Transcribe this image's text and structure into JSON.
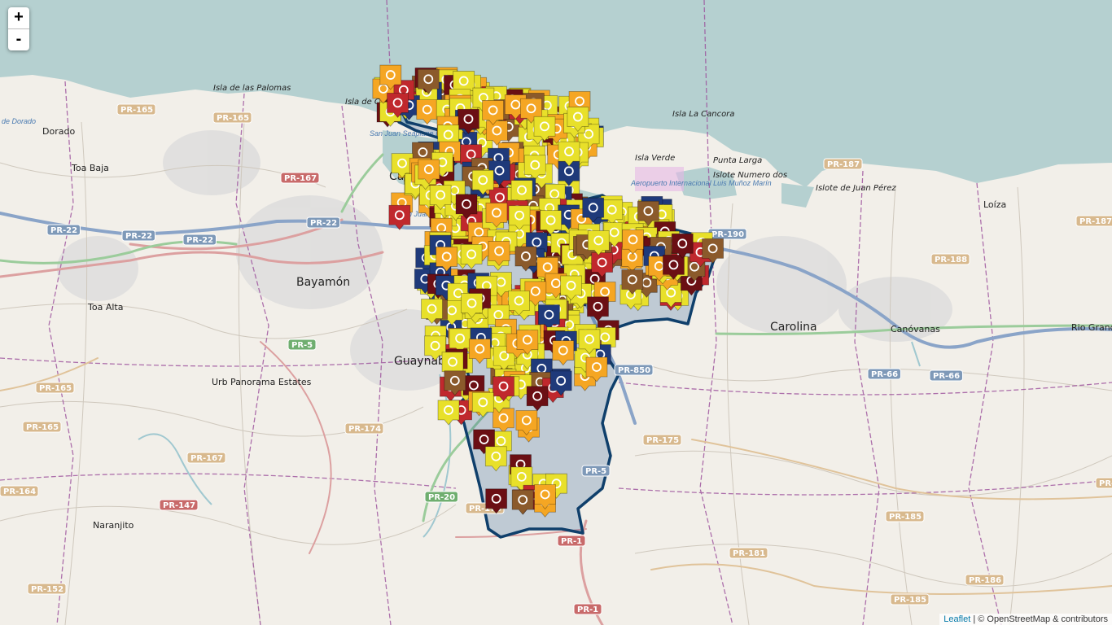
{
  "map": {
    "zoom_in_label": "+",
    "zoom_out_label": "-",
    "attribution": {
      "leaflet": "Leaflet",
      "rest": " | © OpenStreetMap & contributors"
    }
  },
  "places": {
    "islets": [
      "Isla de las Palomas",
      "Isla de Cabras",
      "Isla La Cancora",
      "Isla Verde",
      "Punta Larga",
      "Islote Numero dos",
      "Islote de Juan Pérez"
    ],
    "towns": [
      "Dorado",
      "Toa Baja",
      "Cataño",
      "Bayamón",
      "Toa Alta",
      "Guaynabo",
      "Urb Panorama Estates",
      "Carolina",
      "Canóvanas",
      "Loíza",
      "Rio Grande",
      "Naranjito"
    ],
    "water": [
      "de Dorado",
      "San Juan Seaplane Base",
      "San Juan Stn",
      "Aeropuerto Internacional Luis Muñoz Marín"
    ]
  },
  "roads": {
    "red": [
      "PR-167",
      "PR-147",
      "PR-1",
      "PR-1"
    ],
    "blue": [
      "PR-22",
      "PR-22",
      "PR-22",
      "PR-22",
      "PR-190",
      "PR-66",
      "PR-66",
      "PR-5",
      "PR-850"
    ],
    "green": [
      "PR-5",
      "PR-20"
    ],
    "tan": [
      "PR-165",
      "PR-165",
      "PR-165",
      "PR-165",
      "PR-174",
      "PR-167",
      "PR-164",
      "PR-152",
      "PR-187",
      "PR-187",
      "PR-188",
      "PR-175",
      "PR-181",
      "PR-185",
      "PR-185",
      "PR-186",
      "PR-186",
      "PR-173"
    ]
  },
  "colors": {
    "sea": "#b5d0d0",
    "land": "#f2efe9",
    "boundary": "#0f3f6b",
    "marker_yellow": "#e8e02a",
    "marker_orange": "#f5a623",
    "marker_red": "#c0282d",
    "marker_brown": "#8b5a2b",
    "marker_navy": "#1f3a7a",
    "marker_maroon": "#6b0f14"
  },
  "icons": [
    "zoom-in-icon",
    "zoom-out-icon",
    "lightbulb-icon",
    "house-icon",
    "pistol-icon",
    "key-car-icon",
    "police-icon",
    "drug-icon",
    "fist-icon"
  ]
}
